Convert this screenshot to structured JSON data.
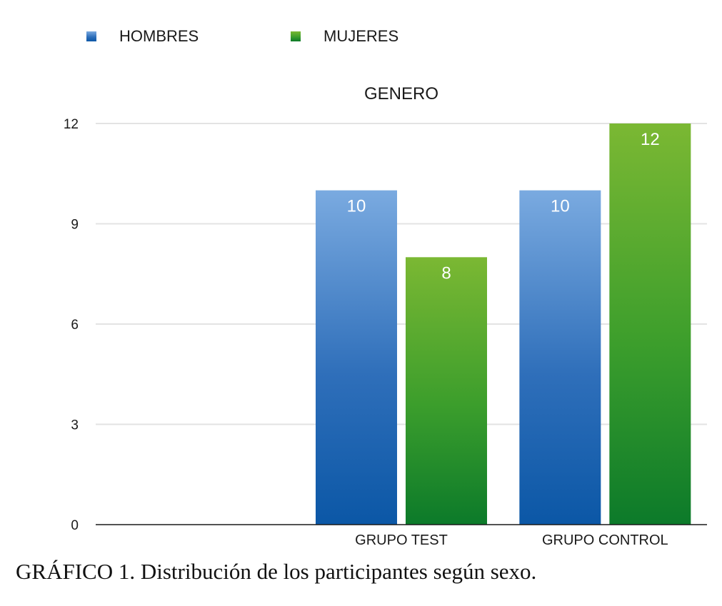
{
  "caption": "GRÁFICO 1. Distribución de los participantes según sexo.",
  "chart_data": {
    "type": "bar",
    "title": "GENERO",
    "categories": [
      "",
      "GRUPO TEST",
      "GRUPO CONTROL"
    ],
    "series": [
      {
        "name": "HOMBRES",
        "values": [
          null,
          10,
          10
        ],
        "color": "#2f6fba",
        "color_light": "#7aaae0",
        "color_dark": "#0b57a6"
      },
      {
        "name": "MUJERES",
        "values": [
          null,
          8,
          12
        ],
        "color": "#3c9e2c",
        "color_light": "#7bb833",
        "color_dark": "#0c7a2a"
      }
    ],
    "ylim": [
      0,
      12
    ],
    "yticks": [
      0,
      3,
      6,
      9,
      12
    ],
    "grid": true,
    "legend_position": "top-left",
    "data_labels": true
  }
}
